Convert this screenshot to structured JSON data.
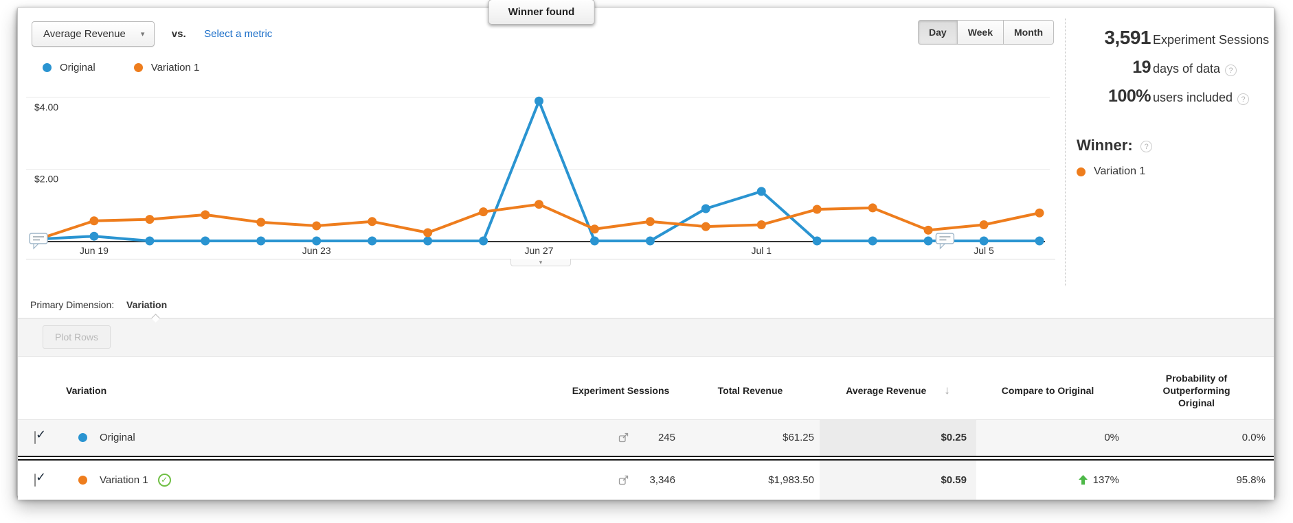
{
  "colors": {
    "original": "#2a94d1",
    "variation": "#ee7d1d",
    "link": "#1b6ec8",
    "winner_green": "#6fbf44",
    "up_arrow_green": "#4db848",
    "baseline": "#333333"
  },
  "icons": {
    "help": "?",
    "caret-down": "▾",
    "sort-descending": "↓",
    "checkbox-check": "✓",
    "winner-check": "✓",
    "tab-caret": "▾"
  },
  "header": {
    "metric_selector_value": "Average Revenue",
    "vs_label": "vs.",
    "select_metric_label": "Select a metric",
    "winner_badge": "Winner found",
    "granularity": [
      "Day",
      "Week",
      "Month"
    ],
    "granularity_active": "Day"
  },
  "stats": {
    "sessions": {
      "value": "3,591",
      "label": "Experiment Sessions"
    },
    "days": {
      "value": "19",
      "label": "days of data"
    },
    "users": {
      "value": "100%",
      "label": "users included"
    }
  },
  "winner": {
    "title": "Winner:",
    "name": "Variation 1"
  },
  "chart_data": {
    "type": "line",
    "x": [
      "Jun 18",
      "Jun 19",
      "Jun 20",
      "Jun 21",
      "Jun 22",
      "Jun 23",
      "Jun 24",
      "Jun 25",
      "Jun 26",
      "Jun 27",
      "Jun 28",
      "Jun 29",
      "Jun 30",
      "Jul 1",
      "Jul 2",
      "Jul 3",
      "Jul 4",
      "Jul 5",
      "Jul 6"
    ],
    "tick_indices": [
      1,
      5,
      9,
      13,
      17
    ],
    "yticks": [
      {
        "value": 2,
        "label": "$2.00"
      },
      {
        "value": 4,
        "label": "$4.00"
      }
    ],
    "ylim": [
      0,
      4.6
    ],
    "ylabel": "Average Revenue ($)",
    "grid": "horizontal",
    "legend_position": "top-left",
    "series": [
      {
        "name": "Original",
        "color": "#2a94d1",
        "values": [
          0.05,
          0.13,
          0,
          0,
          0,
          0,
          0,
          0,
          0,
          3.9,
          0,
          0,
          0.9,
          1.38,
          0,
          0,
          0,
          0,
          0
        ]
      },
      {
        "name": "Variation 1",
        "color": "#ee7d1d",
        "values": [
          0.05,
          0.56,
          0.6,
          0.73,
          0.52,
          0.42,
          0.54,
          0.23,
          0.81,
          1.02,
          0.33,
          0.54,
          0.4,
          0.45,
          0.88,
          0.92,
          0.3,
          0.45,
          0.78
        ]
      }
    ],
    "annotations": [
      {
        "x_index": 0,
        "icon": "note-bubble"
      },
      {
        "x_index": 16.3,
        "icon": "note-bubble"
      }
    ]
  },
  "primary_dimension": {
    "label": "Primary Dimension:",
    "value": "Variation"
  },
  "toolbar": {
    "plot_rows_label": "Plot Rows"
  },
  "table": {
    "headers": {
      "variation": "Variation",
      "sessions": "Experiment Sessions",
      "total_revenue": "Total Revenue",
      "avg_revenue": "Average Revenue",
      "compare": "Compare to Original",
      "probability": "Probability of Outperforming Original"
    },
    "sorted_by": "Average Revenue",
    "rows": [
      {
        "name": "Original",
        "checked": true,
        "is_winner": false,
        "sessions": "245",
        "total_revenue": "$61.25",
        "avg_revenue": "$0.25",
        "compare": "0%",
        "compare_up": false,
        "probability": "0.0%"
      },
      {
        "name": "Variation 1",
        "checked": true,
        "is_winner": true,
        "sessions": "3,346",
        "total_revenue": "$1,983.50",
        "avg_revenue": "$0.59",
        "compare": "137%",
        "compare_up": true,
        "probability": "95.8%"
      }
    ]
  }
}
